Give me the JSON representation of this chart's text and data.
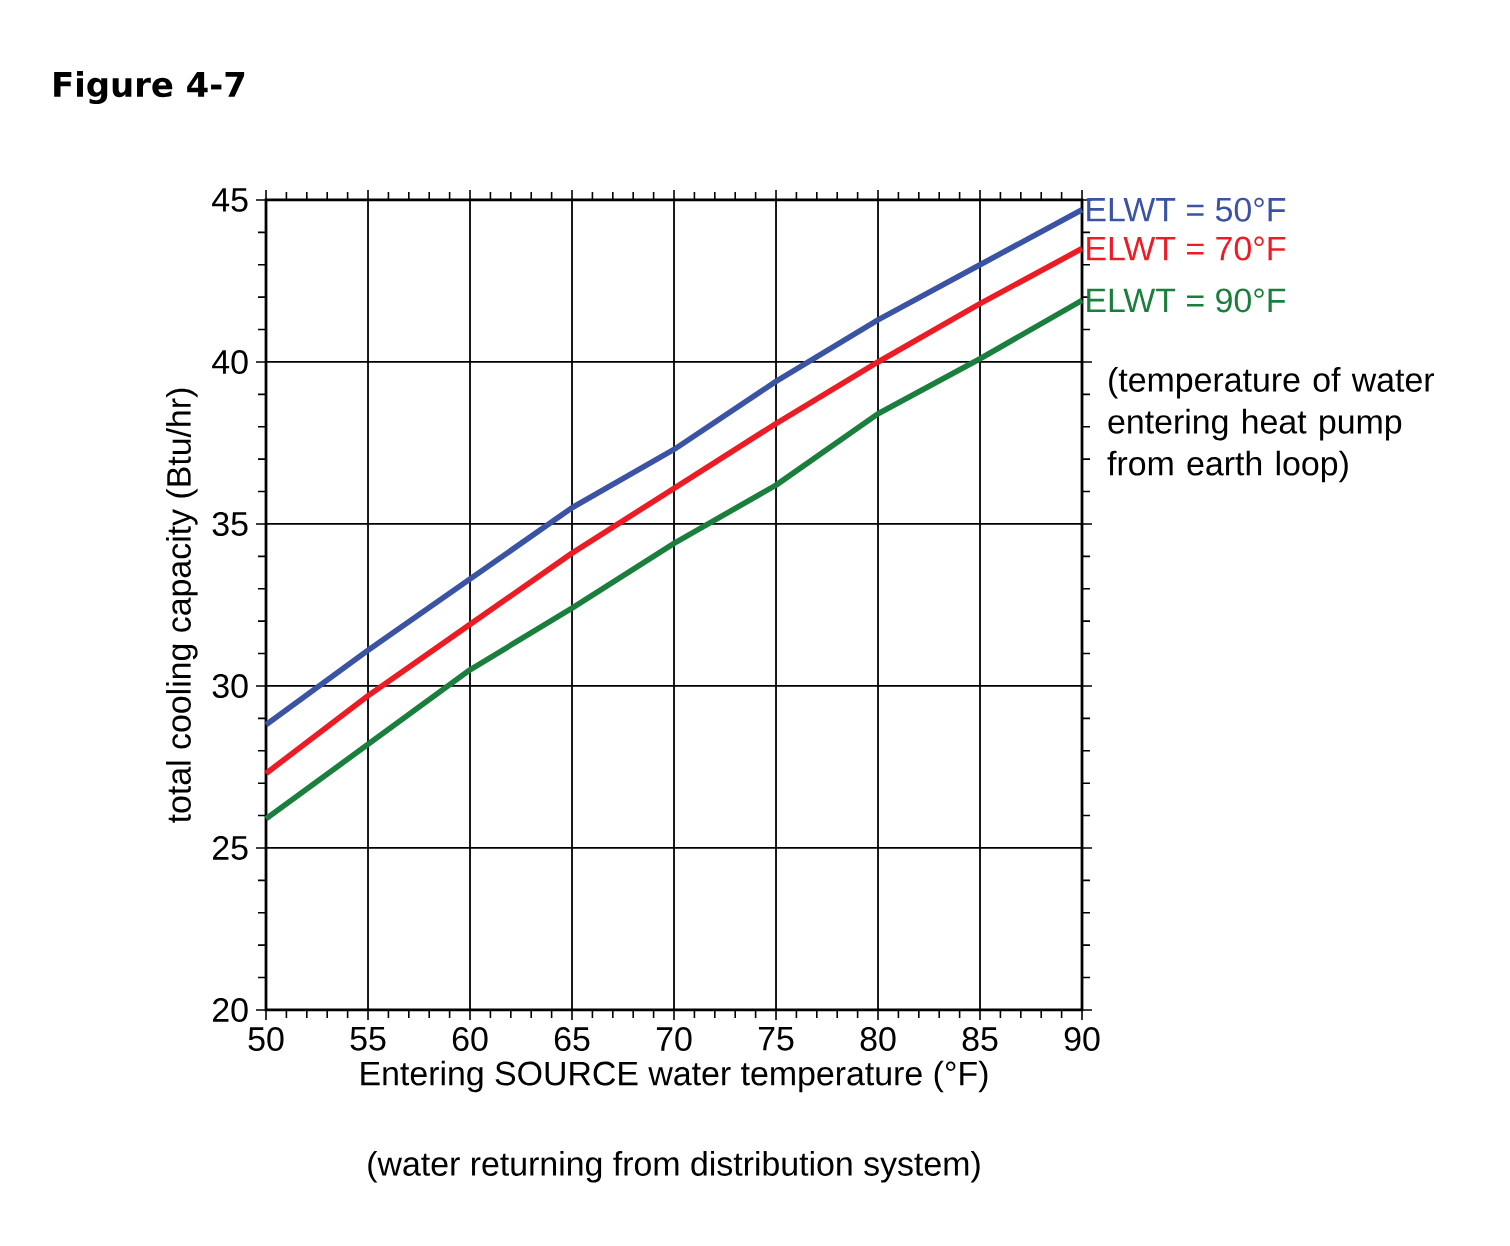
{
  "chart_data": {
    "type": "line",
    "title": "Figure 4-7",
    "xlabel": "Entering SOURCE water temperature (°F)",
    "ylabel": "total cooling capacity (Btu/hr)",
    "x": [
      50,
      55,
      60,
      65,
      70,
      75,
      80,
      85,
      90
    ],
    "series": [
      {
        "name": "ELWT = 50°F",
        "color": "#3a53a4",
        "values": [
          28.8,
          31.1,
          33.3,
          35.5,
          37.3,
          39.4,
          41.3,
          43.0,
          44.7
        ]
      },
      {
        "name": "ELWT = 70°F",
        "color": "#ed1c24",
        "values": [
          27.3,
          29.7,
          31.9,
          34.1,
          36.1,
          38.1,
          40.0,
          41.8,
          43.5
        ]
      },
      {
        "name": "ELWT = 90°F",
        "color": "#1a7f3c",
        "values": [
          25.9,
          28.2,
          30.5,
          32.4,
          34.4,
          36.2,
          38.4,
          40.1,
          41.9
        ]
      }
    ],
    "xlim": [
      50,
      90
    ],
    "ylim": [
      20,
      45
    ],
    "xticks": [
      50,
      55,
      60,
      65,
      70,
      75,
      80,
      85,
      90
    ],
    "yticks": [
      20,
      25,
      30,
      35,
      40,
      45
    ],
    "grid": true,
    "legend": "right",
    "marker": "none",
    "line_style": "solid",
    "annotations": [
      "(temperature of water entering heat pump from earth loop)",
      "(water returning from distribution system)"
    ]
  }
}
